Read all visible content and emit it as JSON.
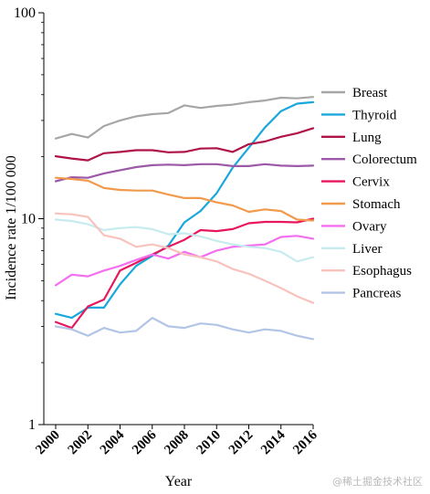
{
  "chart_data": {
    "type": "line",
    "title": "",
    "xlabel": "Year",
    "ylabel": "Incidence rate 1/100 000",
    "yscale": "log",
    "ylim": [
      1,
      100
    ],
    "xlim": [
      2000,
      2016
    ],
    "yticks": [
      {
        "value": 1,
        "label": "1"
      },
      {
        "value": 10,
        "label": "10"
      },
      {
        "value": 100,
        "label": "100"
      }
    ],
    "xticks": [
      {
        "value": 2000,
        "label": "2000"
      },
      {
        "value": 2002,
        "label": "2002"
      },
      {
        "value": 2004,
        "label": "2004"
      },
      {
        "value": 2006,
        "label": "2006"
      },
      {
        "value": 2008,
        "label": "2008"
      },
      {
        "value": 2010,
        "label": "2010"
      },
      {
        "value": 2012,
        "label": "2012"
      },
      {
        "value": 2014,
        "label": "2014"
      },
      {
        "value": 2016,
        "label": "2016"
      }
    ],
    "legend_position": "right",
    "grid": false,
    "x": [
      2000,
      2001,
      2002,
      2003,
      2004,
      2005,
      2006,
      2007,
      2008,
      2009,
      2010,
      2011,
      2012,
      2013,
      2014,
      2015,
      2016
    ],
    "series": [
      {
        "name": "Breast",
        "color": "#a6a6a6",
        "values": [
          24.5,
          25.8,
          24.8,
          28.2,
          30.0,
          31.4,
          32.2,
          32.6,
          35.5,
          34.5,
          35.3,
          35.8,
          36.8,
          37.5,
          38.7,
          38.4,
          39.0
        ]
      },
      {
        "name": "Thyroid",
        "color": "#1aa7dc",
        "values": [
          3.45,
          3.3,
          3.7,
          3.7,
          4.8,
          5.9,
          6.6,
          7.4,
          9.6,
          10.9,
          13.3,
          17.7,
          22.1,
          27.7,
          33.3,
          36.2,
          36.8
        ]
      },
      {
        "name": "Lung",
        "color": "#b0124a",
        "values": [
          20.1,
          19.6,
          19.2,
          20.8,
          21.1,
          21.5,
          21.5,
          21.0,
          21.1,
          21.9,
          22.0,
          21.1,
          23.0,
          23.7,
          25.0,
          26.0,
          27.5
        ]
      },
      {
        "name": "Colorectum",
        "color": "#9b59a8",
        "values": [
          15.2,
          15.9,
          15.8,
          16.6,
          17.2,
          17.8,
          18.2,
          18.3,
          18.2,
          18.4,
          18.4,
          18.0,
          18.0,
          18.4,
          18.1,
          18.0,
          18.1
        ]
      },
      {
        "name": "Cervix",
        "color": "#e8175d",
        "values": [
          3.15,
          2.95,
          3.75,
          4.05,
          5.6,
          6.1,
          6.7,
          7.3,
          7.9,
          8.8,
          8.7,
          8.9,
          9.5,
          9.65,
          9.65,
          9.6,
          10.0
        ]
      },
      {
        "name": "Stomach",
        "color": "#f19a4c",
        "values": [
          15.8,
          15.6,
          15.3,
          14.1,
          13.8,
          13.7,
          13.7,
          13.1,
          12.6,
          12.6,
          12.0,
          11.6,
          10.8,
          11.1,
          10.9,
          9.9,
          9.8
        ]
      },
      {
        "name": "Ovary",
        "color": "#f46ef0",
        "values": [
          4.75,
          5.35,
          5.25,
          5.6,
          5.9,
          6.3,
          6.7,
          6.4,
          6.9,
          6.5,
          7.0,
          7.3,
          7.4,
          7.5,
          8.15,
          8.25,
          8.0
        ]
      },
      {
        "name": "Liver",
        "color": "#c6ecef",
        "values": [
          9.9,
          9.75,
          9.4,
          8.8,
          9.0,
          9.1,
          8.9,
          8.4,
          8.5,
          8.2,
          7.8,
          7.5,
          7.3,
          7.2,
          6.9,
          6.2,
          6.5
        ]
      },
      {
        "name": "Esophagus",
        "color": "#f8c2bd",
        "values": [
          10.6,
          10.5,
          10.2,
          8.3,
          8.0,
          7.3,
          7.5,
          7.2,
          6.7,
          6.5,
          6.2,
          5.7,
          5.4,
          5.0,
          4.6,
          4.2,
          3.9
        ]
      },
      {
        "name": "Pancreas",
        "color": "#b3c5e6",
        "values": [
          3.0,
          2.9,
          2.7,
          2.95,
          2.8,
          2.85,
          3.3,
          3.0,
          2.95,
          3.1,
          3.05,
          2.9,
          2.8,
          2.9,
          2.85,
          2.7,
          2.6
        ]
      }
    ]
  },
  "watermark": "@稀土掘金技术社区"
}
